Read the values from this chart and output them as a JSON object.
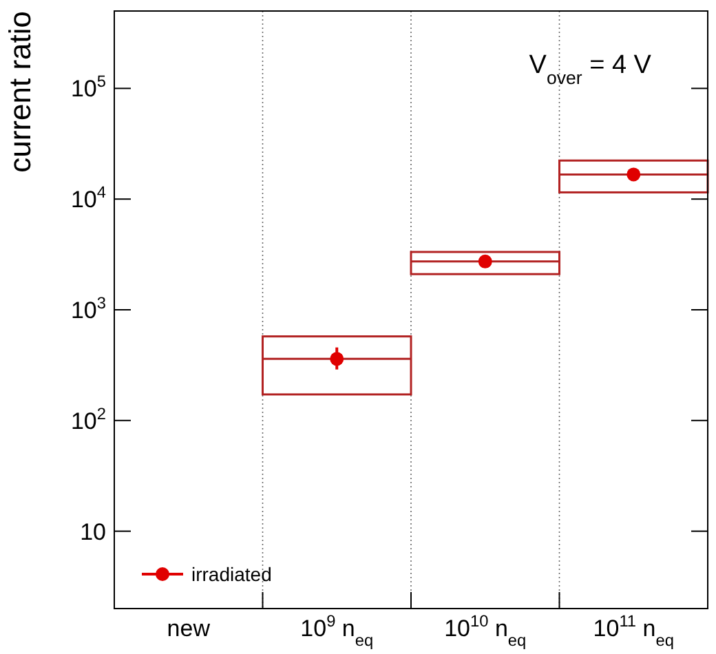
{
  "chart_data": {
    "type": "box",
    "ylabel": "current ratio",
    "annotations": [
      "V$_{over}$ = 4 V"
    ],
    "categories": [
      "new",
      "10$^{9}$ n$_{eq}$",
      "10$^{10}$ n$_{eq}$",
      "10$^{11}$ n$_{eq}$"
    ],
    "color": "#b22222",
    "boxes": [
      null,
      {
        "low": 172,
        "q1": 172,
        "median": 360,
        "q3": 575,
        "high": 575
      },
      {
        "low": 2100,
        "q1": 2100,
        "median": 2730,
        "q3": 3330,
        "high": 3330
      },
      {
        "low": 11500,
        "q1": 11500,
        "median": 16700,
        "q3": 22300,
        "high": 22300
      }
    ],
    "series": [
      {
        "type": "scatter",
        "name": "irradiated",
        "color": "#e00000",
        "values": [
          null,
          360,
          2730,
          16700
        ],
        "errors": [
          null,
          [
            289,
            457
          ],
          null,
          null
        ]
      }
    ],
    "log": true,
    "ylim": [
      2,
      500000
    ],
    "yticks": [
      {
        "value": 10,
        "label": "10"
      },
      {
        "value": 100,
        "label": "10$^{2}$"
      },
      {
        "value": 1000,
        "label": "10$^{3}$"
      },
      {
        "value": 10000,
        "label": "10$^{4}$"
      },
      {
        "value": 100000,
        "label": "10$^{5}$"
      }
    ],
    "grid": "x",
    "legend": "bottom left",
    "marker": "circle"
  }
}
